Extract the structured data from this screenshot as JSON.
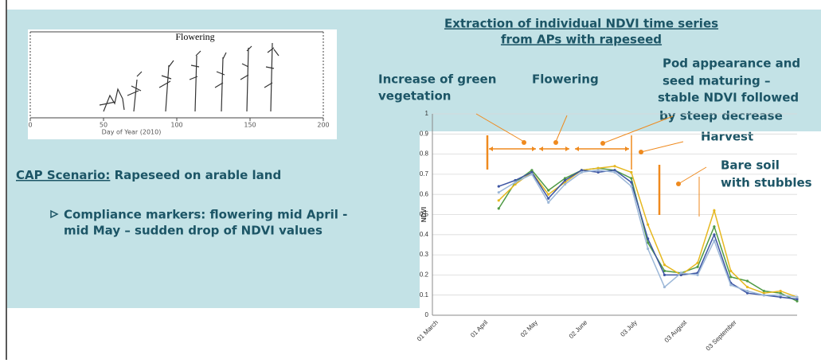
{
  "slide": {
    "heading": [
      "Extraction of individual NDVI time series",
      "from APs with rapeseed"
    ],
    "annotations": {
      "green": [
        "Increase of green",
        "vegetation"
      ],
      "flowering": [
        "Flowering"
      ],
      "pod": [
        "Pod appearance and",
        "seed maturing –",
        "stable NDVI followed",
        "by steep decrease"
      ],
      "harvest": [
        "Harvest"
      ],
      "bare": [
        "Bare soil",
        "with stubbles"
      ]
    },
    "scenario_label": "CAP Scenario:",
    "scenario_text": " Rapeseed on arable land",
    "bullet": [
      "Compliance markers: flowering mid April -",
      "mid May – sudden drop of NDVI values"
    ],
    "inset": {
      "title": "Flowering",
      "xticks": [
        0,
        50,
        100,
        150,
        200
      ],
      "xlabel": "Day of Year  (2010)"
    }
  },
  "chart_data": {
    "type": "line",
    "ylabel": "NDVI",
    "categories": [
      "01 March",
      null,
      null,
      "01 April",
      null,
      null,
      "02 May",
      null,
      null,
      "02 June",
      null,
      null,
      "03 July",
      null,
      null,
      "03 August",
      null,
      null,
      "03 September",
      null,
      null,
      null,
      null
    ],
    "series": [
      {
        "color": "#4f9a45",
        "values": [
          null,
          null,
          null,
          null,
          0.53,
          0.66,
          0.72,
          0.62,
          0.68,
          0.72,
          0.73,
          0.72,
          0.68,
          0.36,
          0.22,
          0.21,
          0.24,
          0.44,
          0.19,
          0.17,
          0.12,
          0.11,
          0.07
        ]
      },
      {
        "color": "#e6b820",
        "values": [
          null,
          null,
          null,
          null,
          0.57,
          0.65,
          0.71,
          0.6,
          0.66,
          0.72,
          0.73,
          0.74,
          0.71,
          0.45,
          0.25,
          0.2,
          0.26,
          0.52,
          0.22,
          0.14,
          0.11,
          0.12,
          0.09
        ]
      },
      {
        "color": "#3d55a3",
        "values": [
          null,
          null,
          null,
          null,
          0.64,
          0.67,
          0.71,
          0.58,
          0.67,
          0.72,
          0.71,
          0.72,
          0.66,
          0.38,
          0.2,
          0.2,
          0.21,
          0.4,
          0.16,
          0.11,
          0.1,
          0.09,
          0.08
        ]
      },
      {
        "color": "#9db8d8",
        "values": [
          null,
          null,
          null,
          null,
          0.61,
          0.66,
          0.7,
          0.56,
          0.65,
          0.71,
          0.72,
          0.71,
          0.64,
          0.33,
          0.14,
          0.21,
          0.2,
          0.37,
          0.15,
          0.12,
          0.1,
          0.1,
          0.09
        ]
      }
    ],
    "ylim": [
      0,
      1
    ],
    "yticks": [
      0,
      0.1,
      0.2,
      0.3,
      0.4,
      0.5,
      0.6,
      0.7,
      0.8,
      0.9,
      1
    ],
    "grid": true
  }
}
